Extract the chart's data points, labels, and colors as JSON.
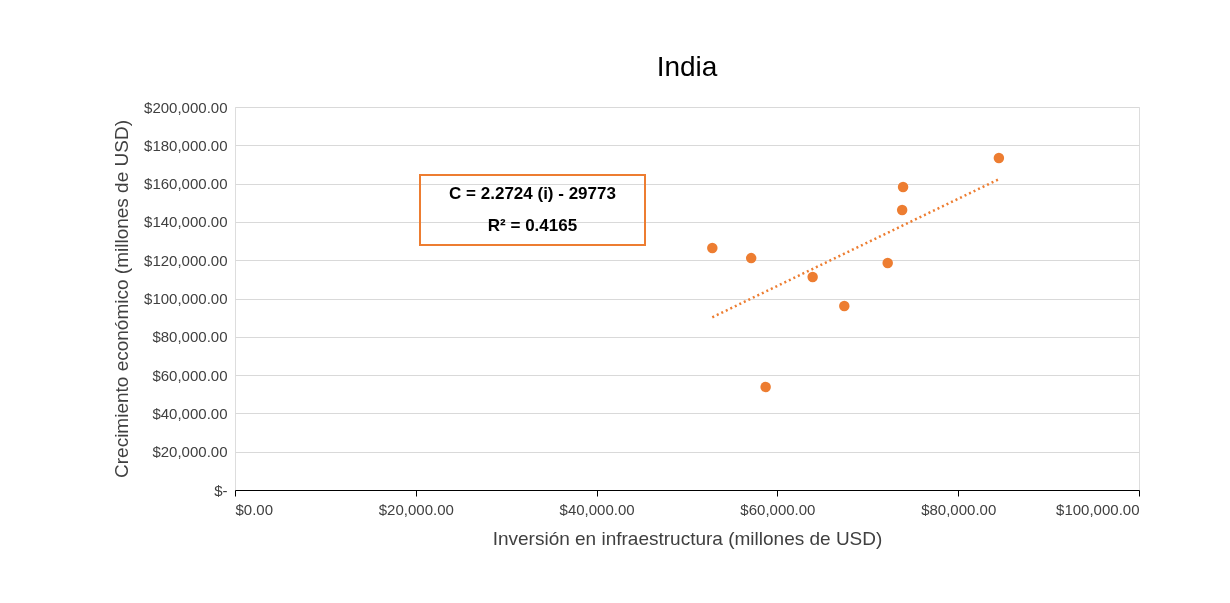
{
  "chart_data": {
    "type": "scatter",
    "title": "India",
    "xlabel": "Inversión en infraestructura (millones de USD)",
    "ylabel": "Crecimiento económico (millones de USD)",
    "xlim": [
      0,
      100000
    ],
    "ylim": [
      0,
      200000
    ],
    "xticks": [
      {
        "value": 0,
        "label": "$0.00"
      },
      {
        "value": 20000,
        "label": "$20,000.00"
      },
      {
        "value": 40000,
        "label": "$40,000.00"
      },
      {
        "value": 60000,
        "label": "$60,000.00"
      },
      {
        "value": 80000,
        "label": "$80,000.00"
      },
      {
        "value": 100000,
        "label": "$100,000.00"
      }
    ],
    "yticks": [
      {
        "value": 0,
        "label": "$-"
      },
      {
        "value": 20000,
        "label": "$20,000.00"
      },
      {
        "value": 40000,
        "label": "$40,000.00"
      },
      {
        "value": 60000,
        "label": "$60,000.00"
      },
      {
        "value": 80000,
        "label": "$80,000.00"
      },
      {
        "value": 100000,
        "label": "$100,000.00"
      },
      {
        "value": 120000,
        "label": "$120,000.00"
      },
      {
        "value": 140000,
        "label": "$140,000.00"
      },
      {
        "value": 160000,
        "label": "$160,000.00"
      },
      {
        "value": 180000,
        "label": "$180,000.00"
      },
      {
        "value": 200000,
        "label": "$200,000.00"
      }
    ],
    "grid": "y",
    "series": [
      {
        "type": "scatter",
        "marker": "circle",
        "color": "#ed7d31",
        "x": [
          52800,
          57100,
          58700,
          63900,
          67400,
          72200,
          73800,
          73900,
          84500
        ],
        "values": [
          126400,
          121100,
          53800,
          111200,
          96100,
          118500,
          146200,
          158200,
          173400
        ]
      },
      {
        "type": "line",
        "marker": "none",
        "line_style": "dotted",
        "color": "#ed7d31",
        "x": [
          52800,
          84500
        ],
        "values": [
          90200,
          162300
        ]
      }
    ],
    "annotations": [
      "C = 2.2724 (i) - 29773",
      "R² = 0.4165"
    ]
  }
}
